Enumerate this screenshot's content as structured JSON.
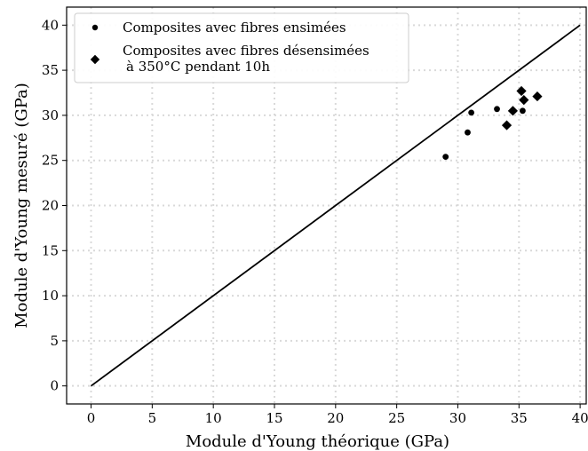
{
  "chart_data": {
    "type": "scatter",
    "xlabel": "Module d'Young théorique (GPa)",
    "ylabel": "Module d'Young mesuré (GPa)",
    "xlim": [
      -2,
      40.5
    ],
    "ylim": [
      -2,
      42
    ],
    "xticks": [
      0,
      5,
      10,
      15,
      20,
      25,
      30,
      35,
      40
    ],
    "yticks": [
      0,
      5,
      10,
      15,
      20,
      25,
      30,
      35,
      40
    ],
    "grid": true,
    "legend_position": "top-left",
    "reference_line": {
      "x": [
        0,
        40
      ],
      "y": [
        0,
        40
      ],
      "color": "#000000"
    },
    "series": [
      {
        "name": "Composites avec fibres ensimées",
        "marker": "circle",
        "color": "#000000",
        "points": [
          {
            "x": 29.0,
            "y": 25.4
          },
          {
            "x": 30.8,
            "y": 28.1
          },
          {
            "x": 31.1,
            "y": 30.3
          },
          {
            "x": 33.2,
            "y": 30.7
          },
          {
            "x": 35.3,
            "y": 30.5
          }
        ]
      },
      {
        "name": "Composites avec fibres désensimées",
        "name_line2": "à 350°C pendant 10h",
        "marker": "diamond",
        "color": "#000000",
        "points": [
          {
            "x": 34.0,
            "y": 28.9
          },
          {
            "x": 34.5,
            "y": 30.5
          },
          {
            "x": 35.2,
            "y": 32.7
          },
          {
            "x": 35.4,
            "y": 31.7
          },
          {
            "x": 36.5,
            "y": 32.1
          }
        ]
      }
    ]
  }
}
